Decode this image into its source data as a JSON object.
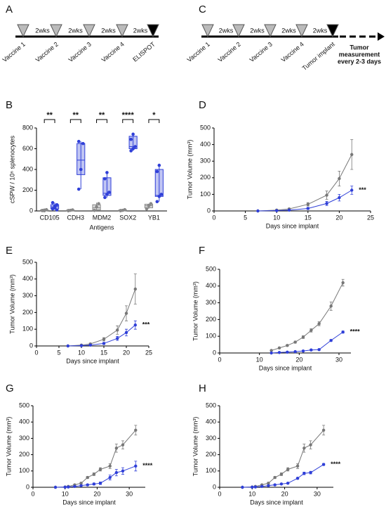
{
  "timelines": [
    {
      "panel": "A",
      "events": [
        "Vaccine 1",
        "Vaccine 2",
        "Vaccine 3",
        "Vaccine 4",
        "ELISPOT"
      ],
      "intervals": [
        "2wks",
        "2wks",
        "2wks",
        "2wks"
      ]
    },
    {
      "panel": "C",
      "events": [
        "Vaccine 1",
        "Vaccine 2",
        "Vaccine 3",
        "Vaccine 4",
        "Tumor implant"
      ],
      "intervals": [
        "2wks",
        "2wks",
        "2wks",
        "2wks"
      ],
      "note": [
        "Tumor",
        "measurement",
        "every 2-3 days"
      ]
    }
  ],
  "chart_data": [
    {
      "type": "box",
      "panel": "B",
      "xlabel": "Antigens",
      "ylabel": "cSPW / 10⁶ splenocytes",
      "categories": [
        "CD105",
        "CDH3",
        "MDM2",
        "SOX2",
        "YB1"
      ],
      "significance": [
        "**",
        "**",
        "**",
        "****",
        "*"
      ],
      "ylim": [
        0,
        800
      ],
      "yticks": [
        0,
        200,
        400,
        600,
        800
      ],
      "series": [
        {
          "color": "#888888",
          "boxes": [
            {
              "min": 0,
              "q1": 2,
              "median": 5,
              "q3": 10,
              "max": 15,
              "points": [
                3,
                8,
                12,
                5,
                2
              ]
            },
            {
              "min": 0,
              "q1": 2,
              "median": 5,
              "q3": 8,
              "max": 12,
              "points": [
                2,
                6,
                10,
                4
              ]
            },
            {
              "min": 0,
              "q1": 10,
              "median": 30,
              "q3": 60,
              "max": 80,
              "points": [
                5,
                40,
                70
              ]
            },
            {
              "min": 0,
              "q1": 2,
              "median": 5,
              "q3": 10,
              "max": 15,
              "points": [
                2,
                6,
                12,
                4
              ]
            },
            {
              "min": 20,
              "q1": 30,
              "median": 50,
              "q3": 65,
              "max": 70,
              "points": [
                20,
                50,
                70
              ]
            }
          ]
        },
        {
          "color": "#2f3fd8",
          "boxes": [
            {
              "min": 10,
              "q1": 20,
              "median": 40,
              "q3": 60,
              "max": 80,
              "points": [
                20,
                45,
                60,
                80,
                30,
                10
              ]
            },
            {
              "min": 210,
              "q1": 350,
              "median": 490,
              "q3": 650,
              "max": 670,
              "points": [
                210,
                400,
                650,
                670
              ]
            },
            {
              "min": 130,
              "q1": 150,
              "median": 170,
              "q3": 320,
              "max": 370,
              "points": [
                130,
                160,
                180,
                310,
                370
              ]
            },
            {
              "min": 580,
              "q1": 600,
              "median": 620,
              "q3": 720,
              "max": 740,
              "points": [
                580,
                600,
                620,
                690,
                740
              ]
            },
            {
              "min": 90,
              "q1": 140,
              "median": 150,
              "q3": 400,
              "max": 440,
              "points": [
                90,
                140,
                160,
                380,
                440
              ]
            }
          ]
        }
      ]
    },
    {
      "type": "line",
      "panel": "D",
      "xlabel": "Days since implant",
      "ylabel": "Tumor Volume (mm³)",
      "annotation": "***",
      "xlim": [
        0,
        25
      ],
      "xticks": [
        0,
        5,
        10,
        15,
        20,
        25
      ],
      "ylim": [
        0,
        500
      ],
      "yticks": [
        0,
        100,
        200,
        300,
        400,
        500
      ],
      "x": [
        7,
        10,
        12,
        15,
        18,
        20,
        22
      ],
      "series": [
        {
          "color": "#777777",
          "values": [
            0,
            5,
            12,
            40,
            95,
            195,
            340
          ],
          "errors": [
            0,
            3,
            5,
            10,
            25,
            45,
            90
          ]
        },
        {
          "color": "#2f3fd8",
          "values": [
            0,
            2,
            5,
            15,
            45,
            80,
            125
          ],
          "errors": [
            0,
            1,
            3,
            6,
            12,
            20,
            25
          ]
        }
      ]
    },
    {
      "type": "line",
      "panel": "E",
      "xlabel": "Days since implant",
      "ylabel": "Tumor Volume (mm³)",
      "annotation": "***",
      "xlim": [
        0,
        25
      ],
      "xticks": [
        0,
        5,
        10,
        15,
        20,
        25
      ],
      "ylim": [
        0,
        500
      ],
      "yticks": [
        0,
        100,
        200,
        300,
        400,
        500
      ],
      "x": [
        7,
        10,
        12,
        15,
        18,
        20,
        22
      ],
      "series": [
        {
          "color": "#777777",
          "values": [
            0,
            5,
            12,
            40,
            95,
            195,
            340
          ],
          "errors": [
            0,
            3,
            5,
            10,
            25,
            45,
            90
          ]
        },
        {
          "color": "#2f3fd8",
          "values": [
            0,
            2,
            5,
            15,
            45,
            80,
            125
          ],
          "errors": [
            0,
            1,
            3,
            6,
            12,
            20,
            25
          ]
        }
      ]
    },
    {
      "type": "line",
      "panel": "F",
      "xlabel": "Days since implant",
      "ylabel": "Tumor Volume (mm³)",
      "annotation": "****",
      "xlim": [
        0,
        33
      ],
      "xticks": [
        0,
        10,
        20,
        30
      ],
      "ylim": [
        0,
        500
      ],
      "yticks": [
        0,
        100,
        200,
        300,
        400,
        500
      ],
      "x": [
        13,
        15,
        17,
        19,
        21,
        23,
        25,
        28,
        31
      ],
      "series": [
        {
          "color": "#777777",
          "values": [
            15,
            30,
            45,
            65,
            95,
            135,
            175,
            280,
            420
          ],
          "errors": [
            3,
            4,
            5,
            6,
            8,
            10,
            12,
            25,
            20
          ]
        },
        {
          "color": "#2f3fd8",
          "values": [
            0,
            3,
            5,
            8,
            12,
            18,
            20,
            75,
            125
          ],
          "errors": [
            0,
            1,
            1,
            2,
            2,
            3,
            3,
            5,
            6
          ]
        }
      ]
    },
    {
      "type": "line",
      "panel": "G",
      "xlabel": "Days since implant",
      "ylabel": "Tumor Volume (mm³)",
      "annotation": "****",
      "xlim": [
        0,
        35
      ],
      "xticks": [
        0,
        10,
        20,
        30
      ],
      "ylim": [
        0,
        500
      ],
      "yticks": [
        0,
        100,
        200,
        300,
        400,
        500
      ],
      "x": [
        7,
        10,
        11,
        13,
        15,
        17,
        19,
        21,
        24,
        26,
        28,
        32
      ],
      "series": [
        {
          "color": "#777777",
          "values": [
            0,
            2,
            5,
            15,
            25,
            60,
            80,
            110,
            130,
            240,
            260,
            350
          ],
          "errors": [
            0,
            1,
            2,
            3,
            5,
            6,
            8,
            10,
            15,
            25,
            25,
            30
          ]
        },
        {
          "color": "#2f3fd8",
          "values": [
            0,
            1,
            2,
            5,
            10,
            15,
            20,
            25,
            60,
            90,
            100,
            130
          ],
          "errors": [
            0,
            1,
            1,
            2,
            3,
            5,
            6,
            8,
            15,
            20,
            20,
            30
          ]
        }
      ]
    },
    {
      "type": "line",
      "panel": "H",
      "xlabel": "Days since implant",
      "ylabel": "Tumor Volume (mm³)",
      "annotation": "****",
      "xlim": [
        0,
        35
      ],
      "xticks": [
        0,
        10,
        20,
        30
      ],
      "ylim": [
        0,
        500
      ],
      "yticks": [
        0,
        100,
        200,
        300,
        400,
        500
      ],
      "x": [
        7,
        10,
        11,
        13,
        15,
        17,
        19,
        21,
        24,
        26,
        28,
        32
      ],
      "series": [
        {
          "color": "#777777",
          "values": [
            0,
            2,
            5,
            15,
            25,
            60,
            80,
            110,
            130,
            240,
            260,
            350
          ],
          "errors": [
            0,
            1,
            2,
            3,
            5,
            6,
            8,
            10,
            15,
            25,
            25,
            30
          ]
        },
        {
          "color": "#2f3fd8",
          "values": [
            0,
            1,
            2,
            5,
            10,
            15,
            20,
            25,
            55,
            85,
            90,
            140
          ],
          "errors": [
            0,
            1,
            1,
            1,
            2,
            3,
            3,
            4,
            6,
            8,
            8,
            6
          ]
        }
      ]
    }
  ]
}
